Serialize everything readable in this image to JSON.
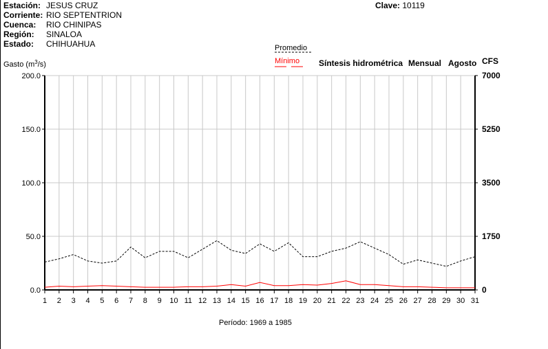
{
  "header": {
    "fields": [
      {
        "label": "Estación:",
        "value": "JESUS CRUZ"
      },
      {
        "label": "Corriente:",
        "value": "RIO SEPTENTRION"
      },
      {
        "label": "Cuenca:",
        "value": "RIO CHINIPAS"
      },
      {
        "label": "Región:",
        "value": "SINALOA"
      },
      {
        "label": "Estado:",
        "value": "CHIHUAHUA"
      }
    ],
    "clave_label": "Clave:",
    "clave_value": "10119"
  },
  "chart_data": {
    "type": "line",
    "title": "Síntesis hidrométrica",
    "subtitle_period": "Mensual",
    "subtitle_month": "Agosto",
    "ylabel_left": "Gasto (m",
    "ylabel_left_sup": "3",
    "ylabel_left_end": "/s)",
    "ylabel_right": "CFS",
    "xlabel": "Período:  1969 a 1985",
    "x": [
      1,
      2,
      3,
      4,
      5,
      6,
      7,
      8,
      9,
      10,
      11,
      12,
      13,
      14,
      15,
      16,
      17,
      18,
      19,
      20,
      21,
      22,
      23,
      24,
      25,
      26,
      27,
      28,
      29,
      30,
      31
    ],
    "x_tick_labels": [
      "1",
      "2",
      "3",
      "4",
      "5",
      "6",
      "7",
      "8",
      "9",
      "10",
      "11",
      "12",
      "13",
      "14",
      "15",
      "16",
      "17",
      "18",
      "19",
      "20",
      "21",
      "22",
      "23",
      "24",
      "25",
      "26",
      "27",
      "28",
      "29",
      "30",
      "31"
    ],
    "ylim_left": [
      0,
      200
    ],
    "y_ticks_left": [
      "0.0",
      "50.0",
      "100.0",
      "150.0",
      "200.0"
    ],
    "y_ticks_left_values": [
      0,
      50,
      100,
      150,
      200
    ],
    "y_ticks_right": [
      "0",
      "1750",
      "3500",
      "5250",
      "7000"
    ],
    "grid": true,
    "series": [
      {
        "name": "Promedio",
        "color": "#000000",
        "style": "dashed",
        "values": [
          26,
          29,
          33,
          27,
          25,
          27,
          40,
          30,
          36,
          36,
          30,
          38,
          46,
          37,
          34,
          43,
          36,
          44,
          31,
          31,
          36,
          39,
          45,
          39,
          33,
          24,
          28,
          25,
          22,
          27,
          31
        ]
      },
      {
        "name": "Mínimo",
        "color": "#ff0000",
        "style": "solid",
        "values": [
          2.5,
          3.5,
          3,
          3.5,
          4,
          3.5,
          3,
          2.5,
          2.5,
          2.5,
          3,
          3,
          3.5,
          5,
          3.5,
          7,
          4,
          4,
          5,
          4.5,
          6,
          8.5,
          5,
          5,
          4,
          3,
          3,
          2.5,
          2,
          2,
          2
        ]
      }
    ]
  }
}
